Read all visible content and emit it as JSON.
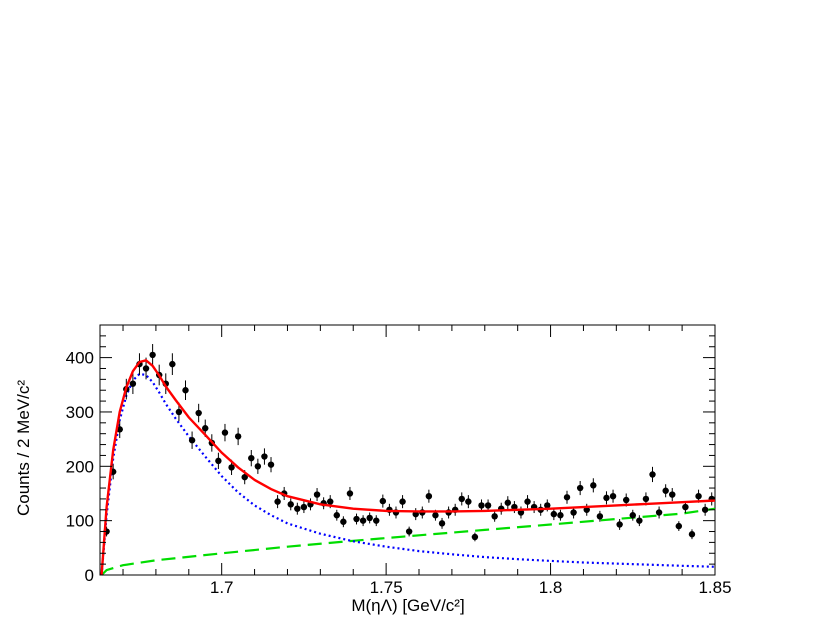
{
  "chart_data": {
    "type": "scatter",
    "title": "",
    "xlabel": "M(ηΛ) [GeV/c²]",
    "ylabel": "Counts / 2 MeV/c²",
    "xlim": [
      1.663,
      1.85
    ],
    "ylim": [
      0,
      460
    ],
    "x_ticks": [
      1.7,
      1.75,
      1.8,
      1.85
    ],
    "x_tick_labels": [
      "1.7",
      "1.75",
      "1.8",
      "1.85"
    ],
    "y_ticks": [
      0,
      100,
      200,
      300,
      400
    ],
    "y_tick_labels": [
      "0",
      "100",
      "200",
      "300",
      "400"
    ],
    "grid": false,
    "legend": "none",
    "series": [
      {
        "kind": "data-points-with-errors",
        "color": "#000000",
        "x": [
          1.665,
          1.667,
          1.669,
          1.671,
          1.673,
          1.675,
          1.677,
          1.679,
          1.681,
          1.683,
          1.685,
          1.687,
          1.689,
          1.691,
          1.693,
          1.695,
          1.697,
          1.699,
          1.701,
          1.703,
          1.705,
          1.707,
          1.709,
          1.711,
          1.713,
          1.715,
          1.717,
          1.719,
          1.721,
          1.723,
          1.725,
          1.727,
          1.729,
          1.731,
          1.733,
          1.735,
          1.737,
          1.739,
          1.741,
          1.743,
          1.745,
          1.747,
          1.749,
          1.751,
          1.753,
          1.755,
          1.757,
          1.759,
          1.761,
          1.763,
          1.765,
          1.767,
          1.769,
          1.771,
          1.773,
          1.775,
          1.777,
          1.779,
          1.781,
          1.783,
          1.785,
          1.787,
          1.789,
          1.791,
          1.793,
          1.795,
          1.797,
          1.799,
          1.801,
          1.803,
          1.805,
          1.807,
          1.809,
          1.811,
          1.813,
          1.815,
          1.817,
          1.819,
          1.821,
          1.823,
          1.825,
          1.827,
          1.829,
          1.831,
          1.833,
          1.835,
          1.837,
          1.839,
          1.841,
          1.843,
          1.845,
          1.847,
          1.849
        ],
        "y": [
          80,
          190,
          268,
          342,
          352,
          388,
          380,
          405,
          368,
          352,
          388,
          300,
          340,
          248,
          298,
          270,
          243,
          210,
          262,
          198,
          255,
          180,
          215,
          200,
          218,
          203,
          135,
          150,
          130,
          122,
          125,
          130,
          148,
          132,
          135,
          110,
          98,
          150,
          103,
          100,
          105,
          100,
          136,
          120,
          115,
          135,
          80,
          112,
          115,
          145,
          110,
          95,
          115,
          120,
          140,
          135,
          70,
          128,
          128,
          108,
          122,
          133,
          125,
          115,
          135,
          125,
          120,
          128,
          112,
          110,
          143,
          115,
          160,
          120,
          165,
          108,
          142,
          145,
          93,
          138,
          110,
          100,
          140,
          185,
          115,
          155,
          148,
          90,
          125,
          75,
          145,
          120,
          140
        ],
        "yerr": [
          9,
          14,
          16,
          19,
          19,
          20,
          20,
          20,
          19,
          19,
          20,
          17,
          18,
          16,
          17,
          16,
          16,
          15,
          16,
          14,
          16,
          13,
          15,
          14,
          15,
          14,
          12,
          12,
          11,
          11,
          11,
          11,
          12,
          11,
          12,
          10,
          10,
          12,
          10,
          10,
          10,
          10,
          12,
          11,
          11,
          12,
          9,
          11,
          11,
          12,
          10,
          10,
          11,
          11,
          12,
          12,
          8,
          11,
          11,
          10,
          11,
          12,
          11,
          11,
          12,
          11,
          11,
          11,
          11,
          10,
          12,
          11,
          13,
          11,
          13,
          10,
          12,
          12,
          10,
          12,
          10,
          10,
          12,
          14,
          11,
          12,
          12,
          9,
          11,
          9,
          12,
          11,
          12
        ]
      },
      {
        "kind": "total-fit",
        "color": "#ff0000",
        "style": "solid",
        "x": [
          1.6635,
          1.665,
          1.667,
          1.669,
          1.671,
          1.673,
          1.675,
          1.677,
          1.679,
          1.681,
          1.683,
          1.686,
          1.69,
          1.695,
          1.7,
          1.705,
          1.71,
          1.715,
          1.72,
          1.73,
          1.74,
          1.75,
          1.76,
          1.77,
          1.78,
          1.79,
          1.8,
          1.81,
          1.82,
          1.83,
          1.84,
          1.85
        ],
        "y": [
          0,
          125,
          230,
          300,
          345,
          375,
          392,
          395,
          385,
          367,
          347,
          322,
          290,
          258,
          225,
          198,
          175,
          158,
          145,
          130,
          122,
          118,
          117,
          117,
          118,
          120,
          122,
          125,
          128,
          131,
          134,
          137
        ]
      },
      {
        "kind": "signal-component",
        "color": "#0000ff",
        "style": "dotted",
        "x": [
          1.6635,
          1.665,
          1.667,
          1.669,
          1.671,
          1.673,
          1.675,
          1.677,
          1.679,
          1.681,
          1.683,
          1.686,
          1.69,
          1.695,
          1.7,
          1.705,
          1.71,
          1.715,
          1.72,
          1.73,
          1.74,
          1.75,
          1.76,
          1.77,
          1.78,
          1.79,
          1.8,
          1.81,
          1.82,
          1.83,
          1.84,
          1.85
        ],
        "y": [
          0,
          110,
          215,
          285,
          330,
          358,
          370,
          368,
          355,
          336,
          315,
          288,
          255,
          218,
          182,
          152,
          128,
          110,
          95,
          76,
          62,
          52,
          44,
          38,
          33,
          29,
          26,
          23,
          21,
          19,
          17,
          15
        ]
      },
      {
        "kind": "background-component",
        "color": "#00dd00",
        "style": "dashed",
        "x": [
          1.6635,
          1.665,
          1.67,
          1.68,
          1.7,
          1.72,
          1.74,
          1.76,
          1.78,
          1.8,
          1.82,
          1.84,
          1.85
        ],
        "y": [
          0,
          9,
          18,
          27,
          40,
          52,
          63,
          73,
          83,
          93,
          103,
          113,
          122
        ]
      }
    ]
  }
}
